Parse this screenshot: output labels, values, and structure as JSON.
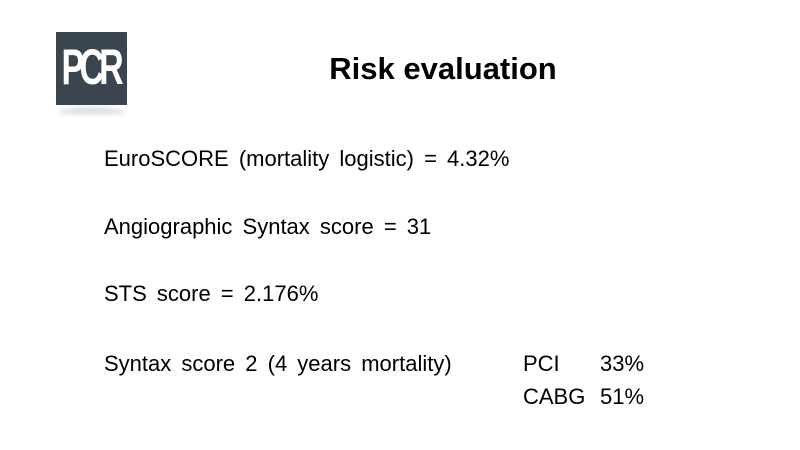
{
  "slide": {
    "title": "Risk evaluation",
    "logo": {
      "text": "PCR",
      "background_color": "#3a4550",
      "text_color": "#ffffff"
    },
    "lines": [
      {
        "text": "EuroSCORE (mortality logistic) = 4.32%"
      },
      {
        "text": "Angiographic Syntax score = 31"
      },
      {
        "text": "STS score = 2.176%"
      },
      {
        "text": "Syntax score 2 (4 years mortality)"
      }
    ],
    "risk_table": {
      "rows": [
        {
          "label": "PCI",
          "value": "33%"
        },
        {
          "label": "CABG",
          "value": "51%"
        }
      ]
    },
    "colors": {
      "text": "#000000",
      "background": "#ffffff"
    }
  }
}
